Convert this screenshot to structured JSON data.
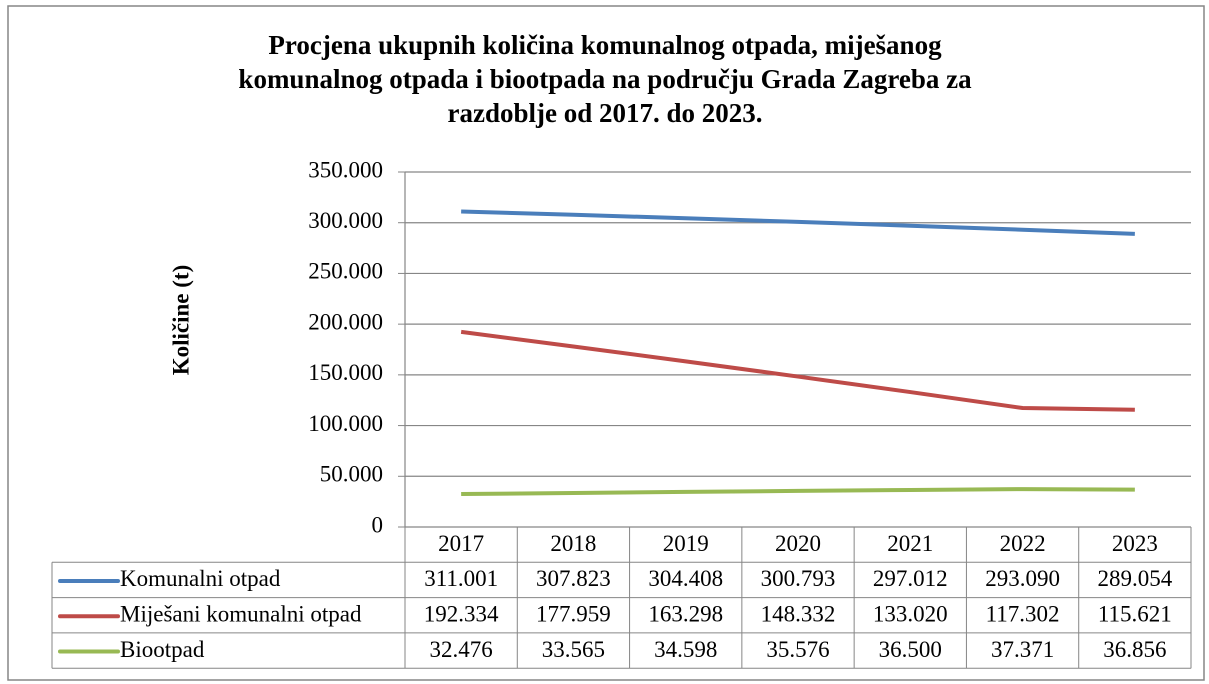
{
  "chart_data": {
    "type": "line",
    "title": [
      "Procjena ukupnih količina komunalnog otpada, miješanog",
      "komunalnog otpada i biootpada na području Grada Zagreba za",
      "razdoblje od 2017. do 2023."
    ],
    "y_label": "Količine (t)",
    "categories": [
      "2017",
      "2018",
      "2019",
      "2020",
      "2021",
      "2022",
      "2023"
    ],
    "ylim": [
      0,
      350000
    ],
    "yticks": [
      0,
      {
        "value": 50000,
        "label": "50.000"
      },
      {
        "value": 100000,
        "label": "100.000"
      },
      {
        "value": 150000,
        "label": "150.000"
      },
      {
        "value": 200000,
        "label": "200.000"
      },
      {
        "value": 250000,
        "label": "250.000"
      },
      {
        "value": 300000,
        "label": "300.000"
      },
      {
        "value": 350000,
        "label": "350.000"
      }
    ],
    "grid": true,
    "series": [
      {
        "name": "Komunalni otpad",
        "color": "#4a7ebb",
        "values": [
          311001,
          307823,
          304408,
          300793,
          297012,
          293090,
          289054
        ],
        "value_labels": [
          "311.001",
          "307.823",
          "304.408",
          "300.793",
          "297.012",
          "293.090",
          "289.054"
        ]
      },
      {
        "name": "Miješani komunalni otpad",
        "color": "#be4b48",
        "values": [
          192334,
          177959,
          163298,
          148332,
          133020,
          117302,
          115621
        ],
        "value_labels": [
          "192.334",
          "177.959",
          "163.298",
          "148.332",
          "133.020",
          "117.302",
          "115.621"
        ]
      },
      {
        "name": "Biootpad",
        "color": "#98b954",
        "values": [
          32476,
          33565,
          34598,
          35576,
          36500,
          37371,
          36856
        ],
        "value_labels": [
          "32.476",
          "33.565",
          "34.598",
          "35.576",
          "36.500",
          "37.371",
          "36.856"
        ]
      }
    ]
  }
}
